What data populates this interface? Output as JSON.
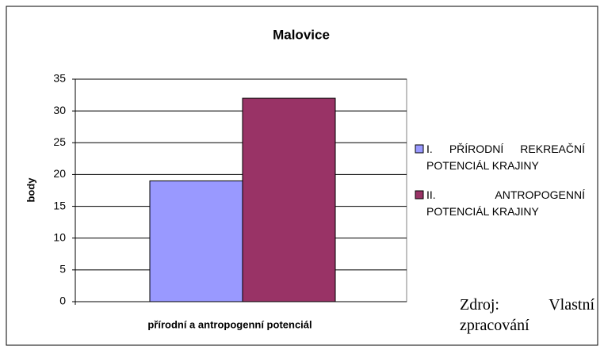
{
  "chart_data": {
    "type": "bar",
    "title": "Malovice",
    "x_label": "přírodní a antropogenní potenciál",
    "y_label": "body",
    "categories": [
      null
    ],
    "series": [
      {
        "name": "I. PŘÍRODNÍ REKREAČNÍ POTENCIÁL KRAJINY",
        "color": "#9999ff",
        "values": [
          19
        ]
      },
      {
        "name": "II. ANTROPOGENNÍ POTENCIÁL KRAJINY",
        "color": "#993366",
        "values": [
          32
        ]
      }
    ],
    "ylim": [
      0,
      35
    ],
    "yticks": [
      0,
      5,
      10,
      15,
      20,
      25,
      30,
      35
    ],
    "grid": true,
    "legend": "right",
    "annotation": "Zdroj: Vlastní zpracování"
  }
}
